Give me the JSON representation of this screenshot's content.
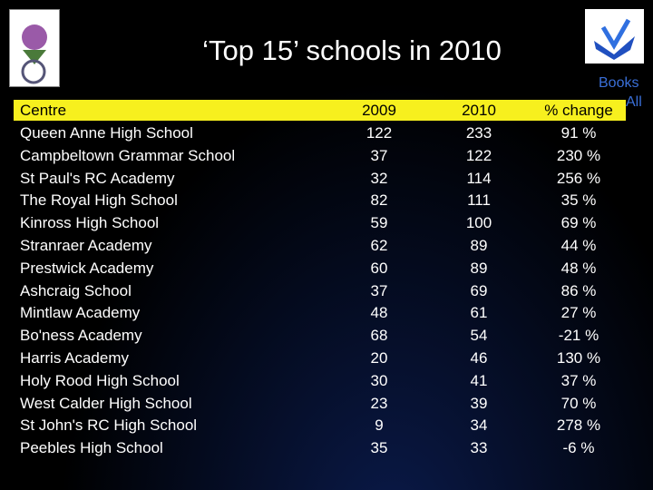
{
  "header": {
    "title": "‘Top 15’ schools in 2010",
    "logo_text": "Books",
    "logo_text_2": "All"
  },
  "table": {
    "columns": [
      "Centre",
      "2009",
      "2010",
      "% change"
    ],
    "rows": [
      [
        "Queen Anne High School",
        "122",
        "233",
        "91 %"
      ],
      [
        "Campbeltown Grammar School",
        "37",
        "122",
        "230 %"
      ],
      [
        "St Paul's RC Academy",
        "32",
        "114",
        "256 %"
      ],
      [
        "The Royal High School",
        "82",
        "111",
        "35 %"
      ],
      [
        "Kinross High School",
        "59",
        "100",
        "69 %"
      ],
      [
        "Stranraer Academy",
        "62",
        "89",
        "44 %"
      ],
      [
        "Prestwick Academy",
        "60",
        "89",
        "48 %"
      ],
      [
        "Ashcraig School",
        "37",
        "69",
        "86 %"
      ],
      [
        "Mintlaw Academy",
        "48",
        "61",
        "27 %"
      ],
      [
        "Bo'ness Academy",
        "68",
        "54",
        "-21 %"
      ],
      [
        "Harris Academy",
        "20",
        "46",
        "130 %"
      ],
      [
        "Holy Rood High School",
        "30",
        "41",
        "37 %"
      ],
      [
        "West Calder High School",
        "23",
        "39",
        "70 %"
      ],
      [
        "St John's RC High School",
        "9",
        "34",
        "278 %"
      ],
      [
        "Peebles High School",
        "35",
        "33",
        "-6 %"
      ]
    ]
  }
}
